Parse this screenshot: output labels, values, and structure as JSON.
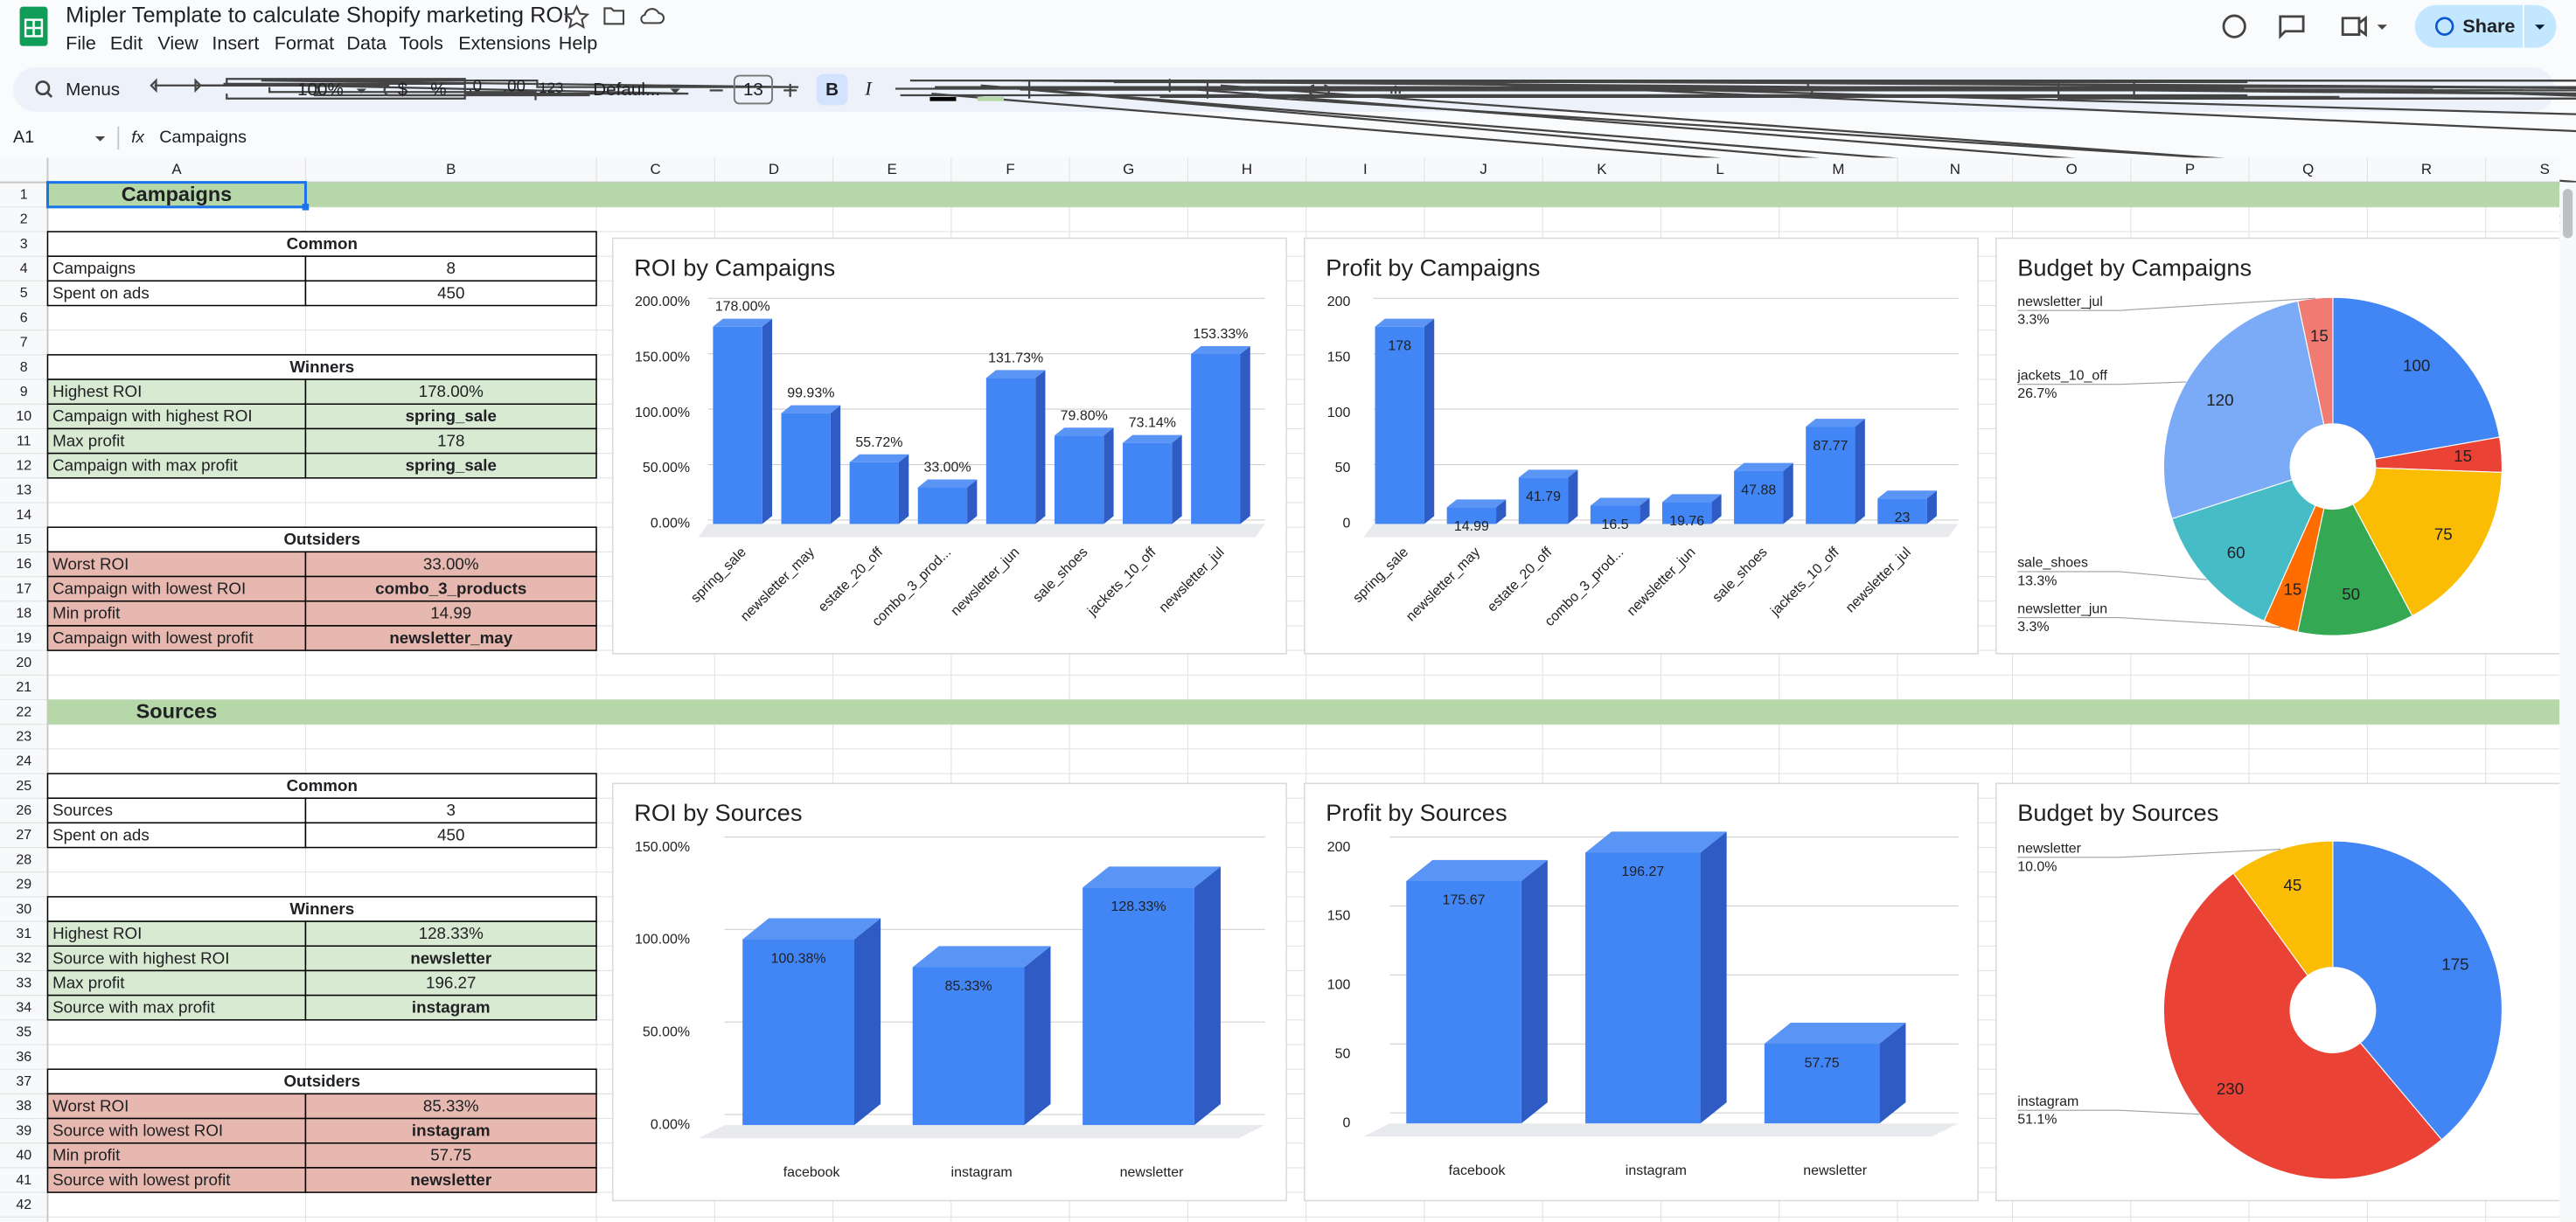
{
  "app": {
    "title": "Mipler Template to calculate Shopify marketing ROI",
    "menus": [
      "File",
      "Edit",
      "View",
      "Insert",
      "Format",
      "Data",
      "Tools",
      "Extensions",
      "Help"
    ],
    "share": "Share"
  },
  "toolbar": {
    "search": "Menus",
    "zoom": "100%",
    "currency": "$",
    "percent": "%",
    "decrease_decimal": ".0",
    "increase_decimal": ".00",
    "number_format": "123",
    "font": "Defaul...",
    "font_size": "13",
    "bold": "B",
    "italic": "I"
  },
  "formula_bar": {
    "cell": "A1",
    "fx": "fx",
    "content": "Campaigns"
  },
  "columns": [
    "A",
    "B",
    "C",
    "D",
    "E",
    "F",
    "G",
    "H",
    "I",
    "J",
    "K",
    "L",
    "M",
    "N",
    "O",
    "P",
    "Q",
    "R",
    "S"
  ],
  "rows": [
    "1",
    "2",
    "3",
    "4",
    "5",
    "6",
    "7",
    "8",
    "9",
    "10",
    "11",
    "12",
    "13",
    "14",
    "15",
    "16",
    "17",
    "18",
    "19",
    "20",
    "21",
    "22",
    "23",
    "24",
    "25",
    "26",
    "27",
    "28",
    "29",
    "30",
    "31",
    "32",
    "33",
    "34",
    "35",
    "36",
    "37",
    "38",
    "39",
    "40",
    "41",
    "42"
  ],
  "sections": [
    {
      "title": "Campaigns",
      "tables": [
        {
          "title": "Common",
          "rows": [
            [
              "Campaigns",
              "8"
            ],
            [
              "Spent on ads",
              "450"
            ]
          ]
        },
        {
          "title": "Winners",
          "rows": [
            [
              "Highest ROI",
              "178.00%"
            ],
            [
              "Campaign with highest ROI",
              "spring_sale"
            ],
            [
              "Max profit",
              "178"
            ],
            [
              "Campaign with max profit",
              "spring_sale"
            ]
          ]
        },
        {
          "title": "Outsiders",
          "rows": [
            [
              "Worst ROI",
              "33.00%"
            ],
            [
              "Campaign with lowest ROI",
              "combo_3_products"
            ],
            [
              "Min profit",
              "14.99"
            ],
            [
              "Campaign with lowest profit",
              "newsletter_may"
            ]
          ]
        }
      ]
    },
    {
      "title": "Sources",
      "tables": [
        {
          "title": "Common",
          "rows": [
            [
              "Sources",
              "3"
            ],
            [
              "Spent on ads",
              "450"
            ]
          ]
        },
        {
          "title": "Winners",
          "rows": [
            [
              "Highest ROI",
              "128.33%"
            ],
            [
              "Source with highest ROI",
              "newsletter"
            ],
            [
              "Max profit",
              "196.27"
            ],
            [
              "Source with max profit",
              "instagram"
            ]
          ]
        },
        {
          "title": "Outsiders",
          "rows": [
            [
              "Worst ROI",
              "85.33%"
            ],
            [
              "Source with lowest ROI",
              "instagram"
            ],
            [
              "Min profit",
              "57.75"
            ],
            [
              "Source with lowest profit",
              "newsletter"
            ]
          ]
        }
      ]
    }
  ],
  "chart_data": [
    {
      "type": "bar",
      "title": "ROI by Campaigns",
      "categories": [
        "spring_sale",
        "newsletter_may",
        "estate_20_off",
        "combo_3_prod...",
        "newsletter_jun",
        "sale_shoes",
        "jackets_10_off",
        "newsletter_jul"
      ],
      "values": [
        178,
        99.93,
        55.72,
        33,
        131.73,
        79.8,
        73.14,
        153.33
      ],
      "value_labels": [
        "178.00%",
        "99.93%",
        "55.72%",
        "33.00%",
        "131.73%",
        "79.80%",
        "73.14%",
        "153.33%"
      ],
      "color": "#4285f4",
      "ylim": [
        0,
        200
      ],
      "yticks": [
        {
          "value": 0,
          "label": "0.00%"
        },
        {
          "value": 50,
          "label": "50.00%"
        },
        {
          "value": 100,
          "label": "100.00%"
        },
        {
          "value": 150,
          "label": "150.00%"
        },
        {
          "value": 200,
          "label": "200.00%"
        }
      ],
      "grid": true
    },
    {
      "type": "bar",
      "title": "Profit by Campaigns",
      "categories": [
        "spring_sale",
        "newsletter_may",
        "estate_20_off",
        "combo_3_prod...",
        "newsletter_jun",
        "sale_shoes",
        "jackets_10_off",
        "newsletter_jul"
      ],
      "values": [
        178,
        14.99,
        41.79,
        16.5,
        19.76,
        47.88,
        87.77,
        23
      ],
      "color": "#4285f4",
      "ylim": [
        0,
        200
      ],
      "yticks": [
        0,
        50,
        100,
        150,
        200
      ],
      "grid": true
    },
    {
      "type": "pie",
      "title": "Budget by Campaigns",
      "categories": [
        null,
        null,
        null,
        null,
        "newsletter_jun",
        "sale_shoes",
        "jackets_10_off",
        "newsletter_jul"
      ],
      "values": [
        100,
        15,
        75,
        50,
        15,
        60,
        120,
        15
      ],
      "percent_labels": [
        null,
        null,
        null,
        null,
        "3.3%",
        "13.3%",
        "26.7%",
        "3.3%"
      ],
      "colors": [
        "#4285f4",
        "#ea4335",
        "#fbbc04",
        "#34a853",
        "#ff6d01",
        "#46bdc6",
        "#7baaf7",
        "#f07b72"
      ]
    },
    {
      "type": "bar",
      "title": "ROI by Sources",
      "categories": [
        "facebook",
        "instagram",
        "newsletter"
      ],
      "values": [
        100.38,
        85.33,
        128.33
      ],
      "value_labels": [
        "100.38%",
        "85.33%",
        "128.33%"
      ],
      "color": "#4285f4",
      "ylim": [
        0,
        150
      ],
      "yticks": [
        {
          "value": 0,
          "label": "0.00%"
        },
        {
          "value": 50,
          "label": "50.00%"
        },
        {
          "value": 100,
          "label": "100.00%"
        },
        {
          "value": 150,
          "label": "150.00%"
        }
      ],
      "grid": true
    },
    {
      "type": "bar",
      "title": "Profit by Sources",
      "categories": [
        "facebook",
        "instagram",
        "newsletter"
      ],
      "values": [
        175.67,
        196.27,
        57.75
      ],
      "color": "#4285f4",
      "ylim": [
        0,
        200
      ],
      "yticks": [
        0,
        50,
        100,
        150,
        200
      ],
      "grid": true
    },
    {
      "type": "pie",
      "title": "Budget by Sources",
      "categories": [
        null,
        "instagram",
        "newsletter"
      ],
      "values": [
        175,
        230,
        45
      ],
      "percent_labels": [
        null,
        "51.1%",
        "10.0%"
      ],
      "colors": [
        "#4285f4",
        "#ea4335",
        "#fbbc04"
      ]
    }
  ]
}
